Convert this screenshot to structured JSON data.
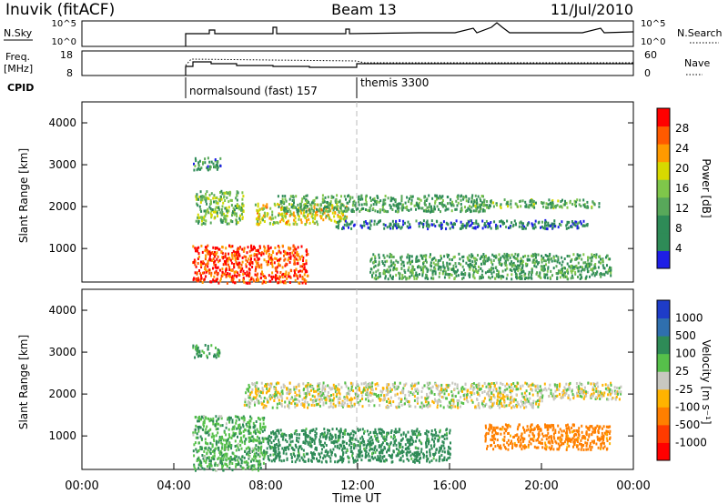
{
  "header": {
    "station": "Inuvik (fitACF)",
    "beam": "Beam 13",
    "date": "11/Jul/2010"
  },
  "top_panels": {
    "nsky_label": "N.Sky",
    "nsky_ticks": [
      "10^5",
      "10^0"
    ],
    "nsearch_label": "N.Search",
    "nsearch_ticks": [
      "10^5",
      "10^0"
    ],
    "freq_label": "Freq.",
    "freq_unit": "[MHz]",
    "freq_ticks": [
      "18",
      "8"
    ],
    "nave_label": "Nave",
    "nave_ticks": [
      "60",
      "0"
    ],
    "cpid_label": "CPID",
    "cpid_segments": [
      {
        "name": "normalsound (fast) 157",
        "start_hour": 4.75
      },
      {
        "name": "themis 3300",
        "start_hour": 12.0
      }
    ]
  },
  "colors": {
    "power_scale": [
      "#1e1ee6",
      "#2e8b57",
      "#2e8b57",
      "#58a85a",
      "#7fc64a",
      "#d7d900",
      "#ff9a00",
      "#ff5a00",
      "#ff0000"
    ],
    "velocity_scale": [
      "#1e3cc8",
      "#2f6fae",
      "#2e8b57",
      "#56c04a",
      "#c8c8c0",
      "#ffb300",
      "#ff7f00",
      "#ff3b00",
      "#ff0000"
    ]
  },
  "chart_data": [
    {
      "type": "heatmap",
      "panel": "power",
      "xlabel": "",
      "ylabel": "Slant Range [km]",
      "xlim_hours": [
        0,
        24
      ],
      "ylim_km": [
        200,
        4500
      ],
      "yticks": [
        1000,
        2000,
        3000,
        4000
      ],
      "colorbar": {
        "label": "Power [dB]",
        "ticks": [
          4,
          8,
          12,
          16,
          20,
          24,
          28
        ],
        "range": [
          0,
          30
        ]
      },
      "regions": [
        {
          "t0": 4.8,
          "t1": 9.8,
          "r0": 200,
          "r1": 1100,
          "value": 26
        },
        {
          "t0": 4.9,
          "t1": 7.0,
          "r0": 1600,
          "r1": 2400,
          "value": 14
        },
        {
          "t0": 7.5,
          "t1": 11.5,
          "r0": 1600,
          "r1": 2100,
          "value": 18
        },
        {
          "t0": 8.5,
          "t1": 17.5,
          "r0": 1900,
          "r1": 2300,
          "value": 10
        },
        {
          "t0": 11.0,
          "t1": 22.0,
          "r0": 1500,
          "r1": 1700,
          "value": 6
        },
        {
          "t0": 17.0,
          "t1": 22.5,
          "r0": 2000,
          "r1": 2200,
          "value": 12
        },
        {
          "t0": 12.5,
          "t1": 23.0,
          "r0": 300,
          "r1": 900,
          "value": 10
        },
        {
          "t0": 4.8,
          "t1": 6.0,
          "r0": 2900,
          "r1": 3200,
          "value": 8
        }
      ]
    },
    {
      "type": "heatmap",
      "panel": "velocity",
      "xlabel": "Time UT",
      "ylabel": "Slant Range [km]",
      "xlim_hours": [
        0,
        24
      ],
      "ylim_km": [
        200,
        4500
      ],
      "yticks": [
        1000,
        2000,
        3000,
        4000
      ],
      "xticks": [
        "00:00",
        "04:00",
        "08:00",
        "12:00",
        "16:00",
        "20:00",
        "00:00"
      ],
      "colorbar": {
        "label": "Velocity [m s⁻¹]",
        "ticks": [
          "1000",
          "500",
          "100",
          "25",
          "-25",
          "-100",
          "-500",
          "-1000"
        ]
      },
      "regions": [
        {
          "t0": 4.8,
          "t1": 8.0,
          "r0": 200,
          "r1": 1500,
          "value": 80
        },
        {
          "t0": 7.0,
          "t1": 20.0,
          "r0": 1700,
          "r1": 2300,
          "value": 0
        },
        {
          "t0": 8.0,
          "t1": 16.0,
          "r0": 400,
          "r1": 1200,
          "value": 150
        },
        {
          "t0": 17.5,
          "t1": 23.0,
          "r0": 700,
          "r1": 1300,
          "value": -150
        },
        {
          "t0": 20.0,
          "t1": 23.5,
          "r0": 1900,
          "r1": 2300,
          "value": 0
        },
        {
          "t0": 4.8,
          "t1": 6.0,
          "r0": 2900,
          "r1": 3200,
          "value": 120
        }
      ]
    }
  ]
}
